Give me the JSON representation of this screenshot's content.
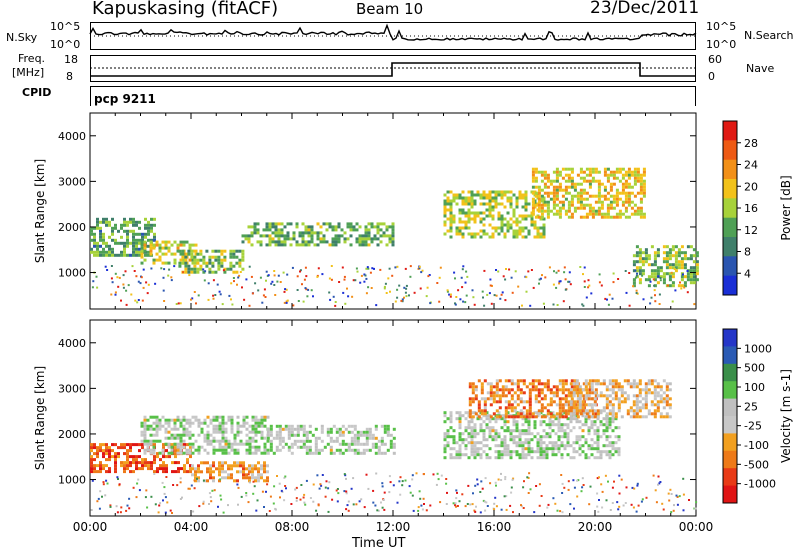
{
  "header": {
    "station": "Kapuskasing (fitACF)",
    "beam": "Beam 10",
    "date": "23/Dec/2011"
  },
  "noise_panel": {
    "left_label": "N.Sky",
    "right_label": "N.Search",
    "left_ticks": [
      "10^5",
      "10^0"
    ],
    "right_ticks": [
      "10^5",
      "10^0"
    ]
  },
  "freq_panel": {
    "left_label_top": "Freq.",
    "left_label_bottom": "[MHz]",
    "right_label": "Nave",
    "left_ticks": [
      "18",
      "8"
    ],
    "right_ticks": [
      "60",
      "0"
    ]
  },
  "cpid": {
    "label": "CPID",
    "value": "pcp 9211"
  },
  "x_axis": {
    "label": "Time UT",
    "ticks": [
      "00:00",
      "04:00",
      "08:00",
      "12:00",
      "16:00",
      "20:00",
      "00:00"
    ]
  },
  "colors": {
    "power_scale": [
      "#1a2fd6",
      "#2a55b0",
      "#3f7f6a",
      "#4fa055",
      "#a7d23a",
      "#f2c21a",
      "#f29018",
      "#ee5a14",
      "#e01a14"
    ],
    "velocity_scale": [
      "#2436c8",
      "#2a5ab4",
      "#3a8f4a",
      "#58c048",
      "#c0c0c0",
      "#c8c8c8",
      "#f2a020",
      "#ee7a18",
      "#e83a16",
      "#e01414"
    ]
  },
  "chart_data": [
    {
      "type": "heatmap",
      "title": "Power",
      "ylabel": "Slant Range [km]",
      "ylim": [
        200,
        4500
      ],
      "yticks": [
        1000,
        2000,
        3000,
        4000
      ],
      "xlabel": "Time UT",
      "xlim_hours": [
        0,
        24
      ],
      "colorbar": {
        "label": "Power [dB]",
        "ticks": [
          "4",
          "8",
          "12",
          "16",
          "20",
          "24",
          "28"
        ]
      },
      "bands": [
        {
          "t": [
            0.0,
            2.5
          ],
          "r": [
            1400,
            2200
          ],
          "level": 0.35
        },
        {
          "t": [
            2.0,
            4.2
          ],
          "r": [
            1200,
            1700
          ],
          "level": 0.55
        },
        {
          "t": [
            3.5,
            6.0
          ],
          "r": [
            1000,
            1500
          ],
          "level": 0.45
        },
        {
          "t": [
            6.0,
            12.0
          ],
          "r": [
            1600,
            2100
          ],
          "level": 0.4
        },
        {
          "t": [
            14.0,
            18.0
          ],
          "r": [
            1800,
            2800
          ],
          "level": 0.5
        },
        {
          "t": [
            17.5,
            22.0
          ],
          "r": [
            2200,
            3300
          ],
          "level": 0.6
        },
        {
          "t": [
            21.5,
            24.0
          ],
          "r": [
            700,
            1600
          ],
          "level": 0.45
        }
      ]
    },
    {
      "type": "heatmap",
      "title": "Velocity",
      "ylabel": "Slant Range [km]",
      "ylim": [
        200,
        4500
      ],
      "yticks": [
        1000,
        2000,
        3000,
        4000
      ],
      "xlabel": "Time UT",
      "xlim_hours": [
        0,
        24
      ],
      "colorbar": {
        "label": "Velocity [m s-1]",
        "ticks": [
          "1000",
          "500",
          "100",
          "25",
          "-25",
          "-100",
          "-500",
          "-1000"
        ]
      },
      "bands": [
        {
          "t": [
            0.0,
            4.0
          ],
          "r": [
            1200,
            1800
          ],
          "level": 0.85
        },
        {
          "t": [
            2.0,
            7.0
          ],
          "r": [
            1600,
            2400
          ],
          "level": 0.45
        },
        {
          "t": [
            4.0,
            7.0
          ],
          "r": [
            1000,
            1400
          ],
          "level": 0.7
        },
        {
          "t": [
            7.0,
            12.0
          ],
          "r": [
            1600,
            2200
          ],
          "level": 0.45
        },
        {
          "t": [
            14.0,
            21.0
          ],
          "r": [
            1500,
            2500
          ],
          "level": 0.45
        },
        {
          "t": [
            15.0,
            20.0
          ],
          "r": [
            2400,
            3200
          ],
          "level": 0.75
        },
        {
          "t": [
            19.0,
            23.0
          ],
          "r": [
            2400,
            3200
          ],
          "level": 0.6
        }
      ]
    }
  ]
}
